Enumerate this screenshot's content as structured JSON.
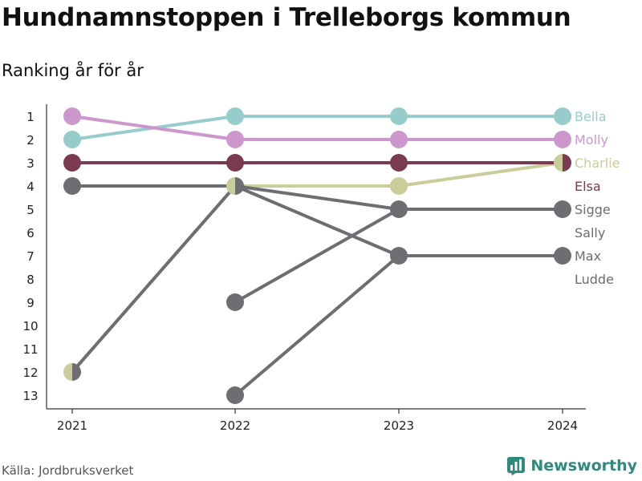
{
  "title": "Hundnamnstoppen i Trelleborgs kommun",
  "subtitle": "Ranking år för år",
  "source": "Källa: Jordbruksverket",
  "brand": "Newsworthy",
  "chart_data": {
    "type": "line",
    "x": [
      "2021",
      "2022",
      "2023",
      "2024"
    ],
    "y_ticks": [
      1,
      2,
      3,
      4,
      5,
      6,
      7,
      8,
      9,
      10,
      11,
      12,
      13
    ],
    "ylim": [
      1,
      13
    ],
    "y_reversed": true,
    "legend": "right",
    "series": [
      {
        "name": "Bella",
        "color": "#96cccc",
        "values": [
          2,
          1,
          1,
          1
        ]
      },
      {
        "name": "Molly",
        "color": "#cc97cc",
        "values": [
          1,
          2,
          2,
          2
        ]
      },
      {
        "name": "Charlie",
        "color": "#cacd9a",
        "values": [
          12,
          4,
          4,
          3
        ]
      },
      {
        "name": "Elsa",
        "color": "#7b3a52",
        "values": [
          3,
          3,
          3,
          3
        ]
      },
      {
        "name": "Sigge",
        "color": "#6d6d72",
        "values": [
          null,
          9,
          5,
          5
        ]
      },
      {
        "name": "Sally",
        "color": "#6d6d72",
        "values": [
          12,
          4,
          7,
          7
        ]
      },
      {
        "name": "Max",
        "color": "#6d6d72",
        "values": [
          null,
          13,
          7,
          7
        ]
      },
      {
        "name": "Ludde",
        "color": "#6d6d72",
        "values": [
          4,
          4,
          5,
          5
        ]
      }
    ],
    "legend_order": [
      "Bella",
      "Molly",
      "Charlie",
      "Elsa",
      "Sigge",
      "Sally",
      "Max",
      "Ludde"
    ]
  }
}
